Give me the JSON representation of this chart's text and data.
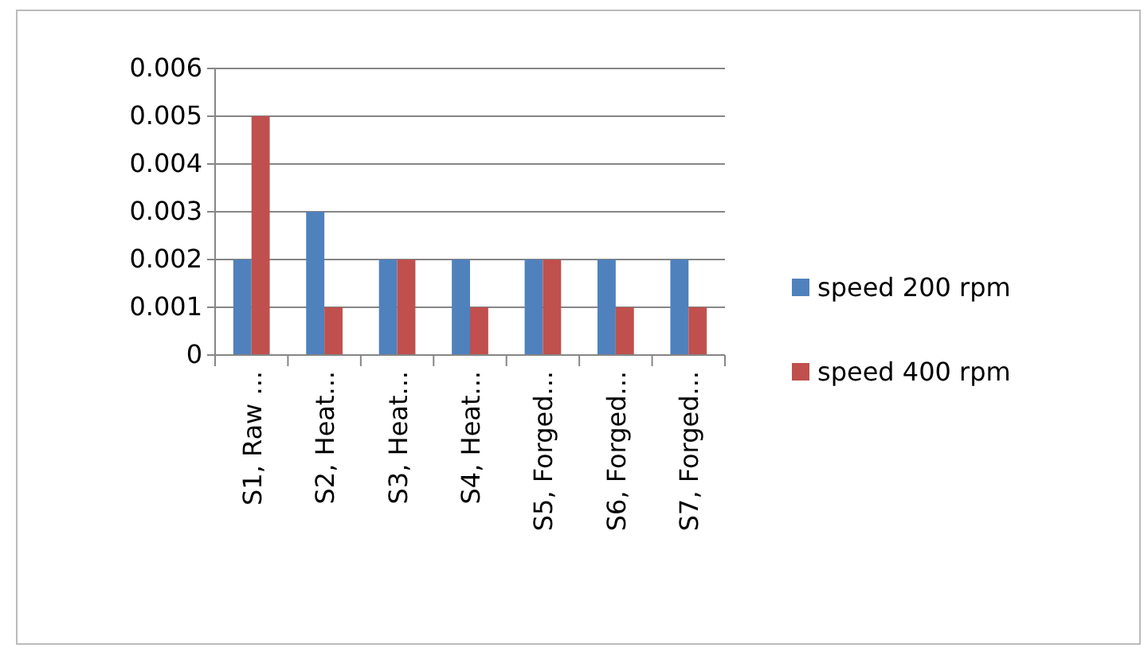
{
  "chart_data": {
    "type": "bar",
    "categories": [
      "S1, Raw ...",
      "S2, Heat...",
      "S3, Heat...",
      "S4, Heat...",
      "S5, Forged...",
      "S6, Forged...",
      "S7, Forged..."
    ],
    "series": [
      {
        "name": "speed 200 rpm",
        "color": "#4f81bd",
        "values": [
          0.002,
          0.003,
          0.002,
          0.002,
          0.002,
          0.002,
          0.002
        ]
      },
      {
        "name": "speed 400 rpm",
        "color": "#c0504d",
        "values": [
          0.005,
          0.001,
          0.002,
          0.001,
          0.002,
          0.001,
          0.001
        ]
      }
    ],
    "ylim": [
      0,
      0.006
    ],
    "yticks": [
      0,
      0.001,
      0.002,
      0.003,
      0.004,
      0.005,
      0.006
    ],
    "grid": "y",
    "legend": "right"
  }
}
